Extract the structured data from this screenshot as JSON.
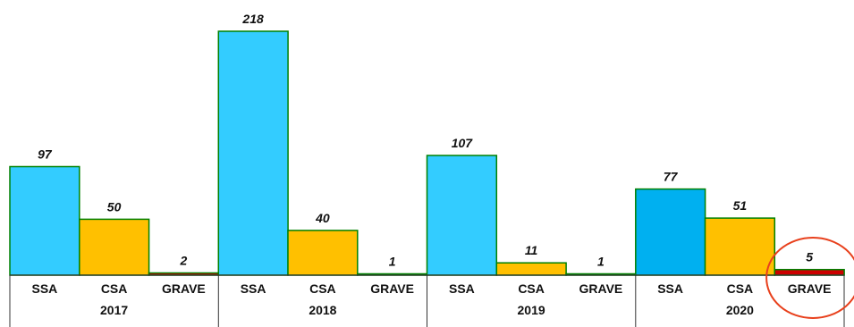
{
  "chart_data": {
    "type": "bar",
    "title": "",
    "xlabel": "",
    "ylabel": "",
    "ylim": [
      0,
      218
    ],
    "grid": false,
    "legend": "none",
    "groups": [
      {
        "year": "2017",
        "bars": [
          {
            "category": "SSA",
            "value": 97,
            "value_label": "97",
            "color": "#33CCFF"
          },
          {
            "category": "CSA",
            "value": 50,
            "value_label": "50",
            "color": "#FFC000"
          },
          {
            "category": "GRAVE",
            "value": 2,
            "value_label": "2",
            "color": "#CC0000"
          }
        ]
      },
      {
        "year": "2018",
        "bars": [
          {
            "category": "SSA",
            "value": 218,
            "value_label": "218",
            "color": "#33CCFF"
          },
          {
            "category": "CSA",
            "value": 40,
            "value_label": "40",
            "color": "#FFC000"
          },
          {
            "category": "GRAVE",
            "value": 1,
            "value_label": "1",
            "color": "#CC0000"
          }
        ]
      },
      {
        "year": "2019",
        "bars": [
          {
            "category": "SSA",
            "value": 107,
            "value_label": "107",
            "color": "#33CCFF"
          },
          {
            "category": "CSA",
            "value": 11,
            "value_label": "11",
            "color": "#FFC000"
          },
          {
            "category": "GRAVE",
            "value": 1,
            "value_label": "1",
            "color": "#CC0000"
          }
        ]
      },
      {
        "year": "2020",
        "bars": [
          {
            "category": "SSA",
            "value": 77,
            "value_label": "77",
            "color": "#00B0F0"
          },
          {
            "category": "CSA",
            "value": 51,
            "value_label": "51",
            "color": "#FFC000"
          },
          {
            "category": "GRAVE",
            "value": 5,
            "value_label": "5",
            "color": "#CC0000"
          }
        ]
      }
    ],
    "bar_outline_color": "#008000",
    "highlight": {
      "year": "2020",
      "category": "GRAVE",
      "shape": "ellipse",
      "color": "#E8401C"
    }
  }
}
